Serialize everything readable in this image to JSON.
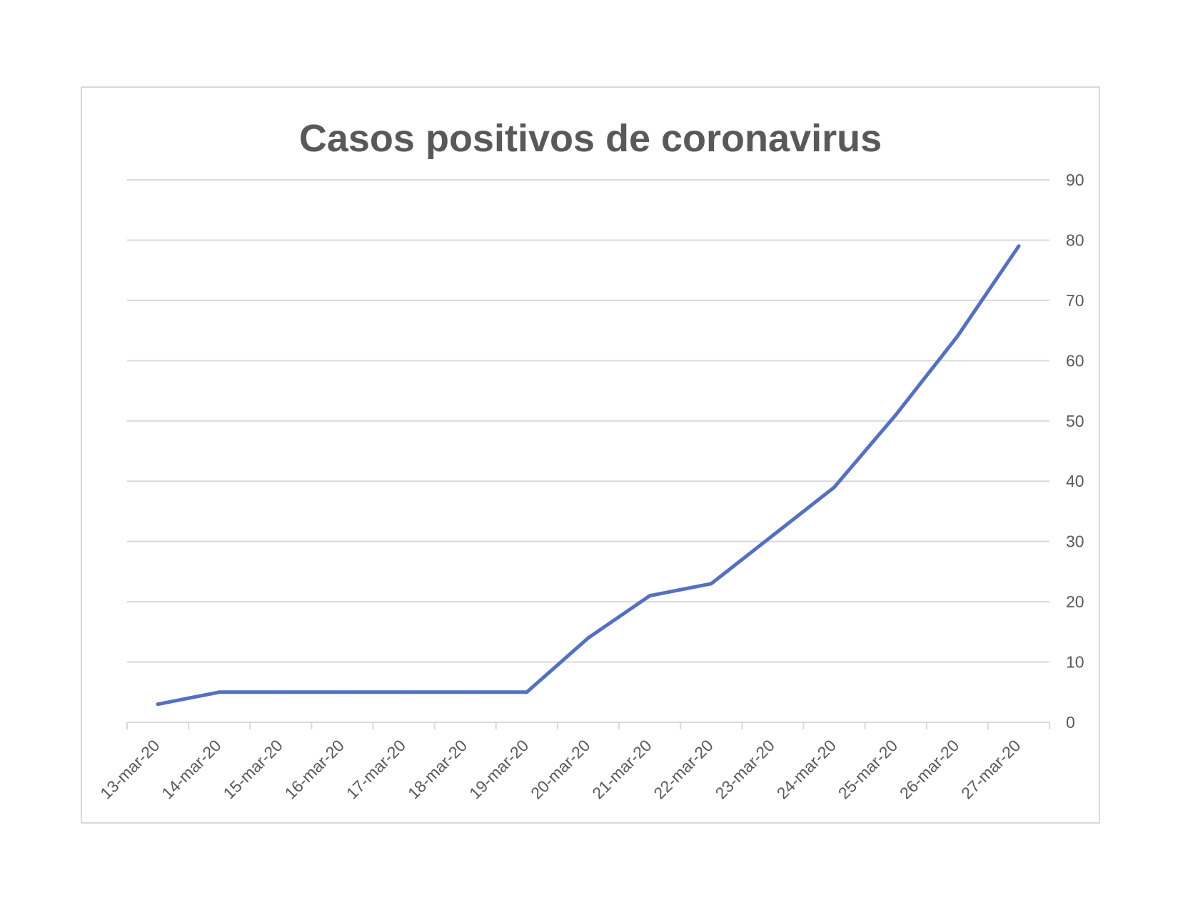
{
  "chart_data": {
    "type": "line",
    "title": "Casos positivos de coronavirus",
    "xlabel": "",
    "ylabel": "",
    "categories": [
      "13-mar-20",
      "14-mar-20",
      "15-mar-20",
      "16-mar-20",
      "17-mar-20",
      "18-mar-20",
      "19-mar-20",
      "20-mar-20",
      "21-mar-20",
      "22-mar-20",
      "23-mar-20",
      "24-mar-20",
      "25-mar-20",
      "26-mar-20",
      "27-mar-20"
    ],
    "series": [
      {
        "values": [
          3,
          5,
          5,
          5,
          5,
          5,
          5,
          14,
          21,
          23,
          31,
          39,
          51,
          64,
          79
        ]
      }
    ],
    "ylim": [
      0,
      90
    ],
    "yticks": [
      0,
      10,
      20,
      30,
      40,
      50,
      60,
      70,
      80,
      90
    ],
    "y_axis_position": "right",
    "grid": true,
    "legend": "none",
    "colors": {
      "line": "#5470c0",
      "grid": "#d9d9d9",
      "text": "#595959",
      "border": "#d9d9d9"
    }
  }
}
